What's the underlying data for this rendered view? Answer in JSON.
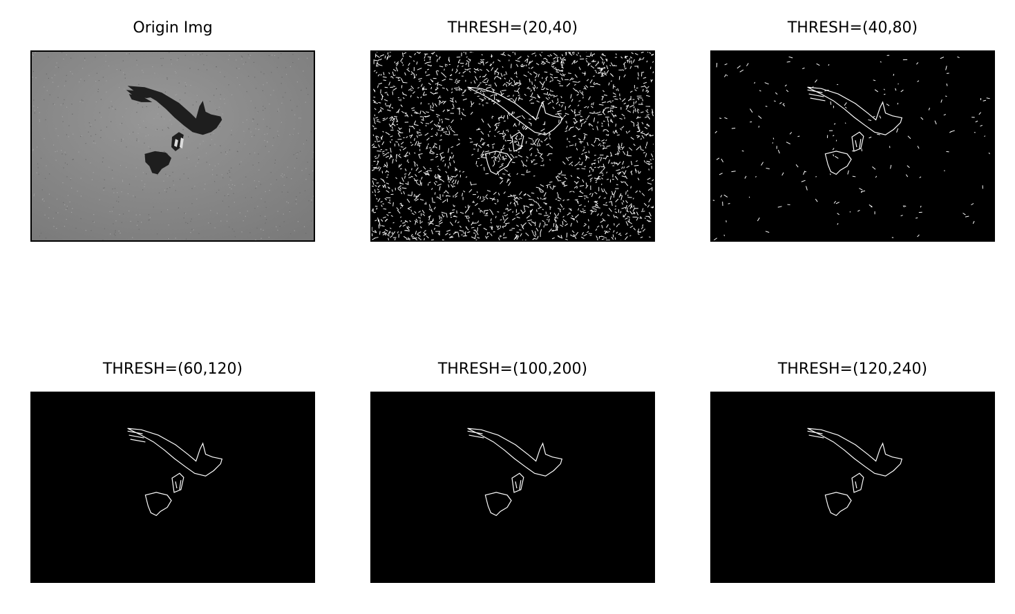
{
  "panels": [
    {
      "title": "Origin Img"
    },
    {
      "title": "THRESH=(20,40)"
    },
    {
      "title": "THRESH=(40,80)"
    },
    {
      "title": "THRESH=(60,120)"
    },
    {
      "title": "THRESH=(100,200)"
    },
    {
      "title": "THRESH=(120,240)"
    }
  ],
  "colors": {
    "background": "#ffffff",
    "sky_gray": "#8a8a8a",
    "bird_dark": "#1e1e1e",
    "edge_black": "#000000",
    "edge_white": "#ffffff"
  }
}
